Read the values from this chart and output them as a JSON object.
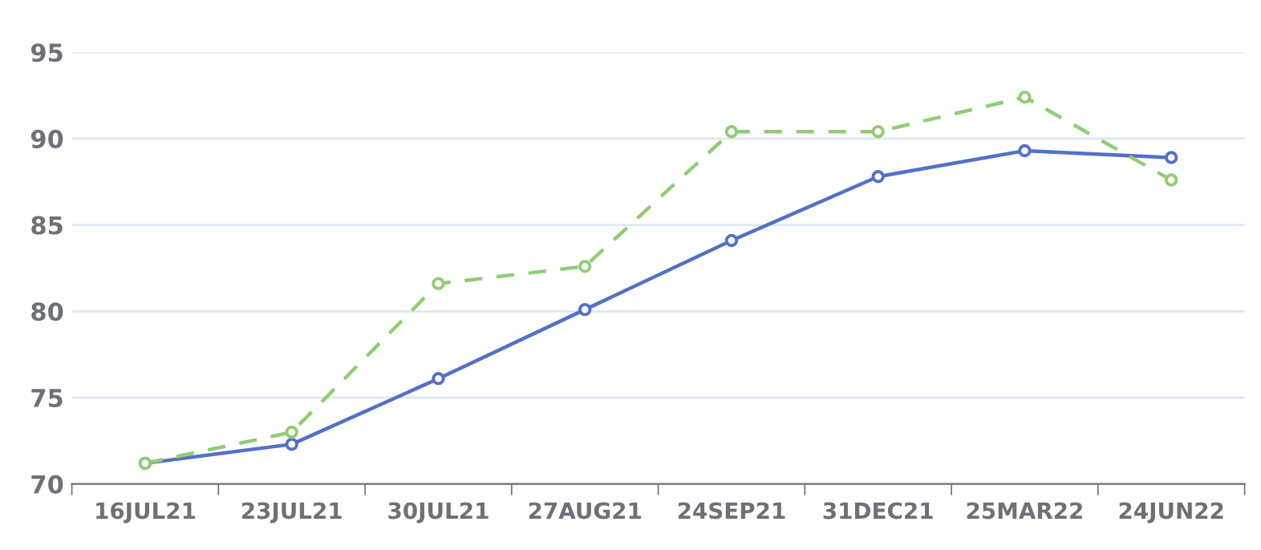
{
  "chart_data": {
    "type": "line",
    "categories": [
      "16JUL21",
      "23JUL21",
      "30JUL21",
      "27AUG21",
      "24SEP21",
      "31DEC21",
      "25MAR22",
      "24JUN22"
    ],
    "series": [
      {
        "color": "#5470c6",
        "line_style": "solid",
        "values": [
          71.2,
          72.3,
          76.1,
          80.1,
          84.1,
          87.8,
          89.3,
          88.9
        ]
      },
      {
        "color": "#91cc75",
        "line_style": "dashed",
        "values": [
          71.2,
          73.0,
          81.6,
          82.6,
          90.4,
          90.4,
          92.4,
          87.6
        ]
      }
    ],
    "ylim": [
      70,
      95
    ],
    "yticks": [
      70,
      75,
      80,
      85,
      90,
      95
    ],
    "grid": "y",
    "marker": "circle",
    "legend": false
  }
}
